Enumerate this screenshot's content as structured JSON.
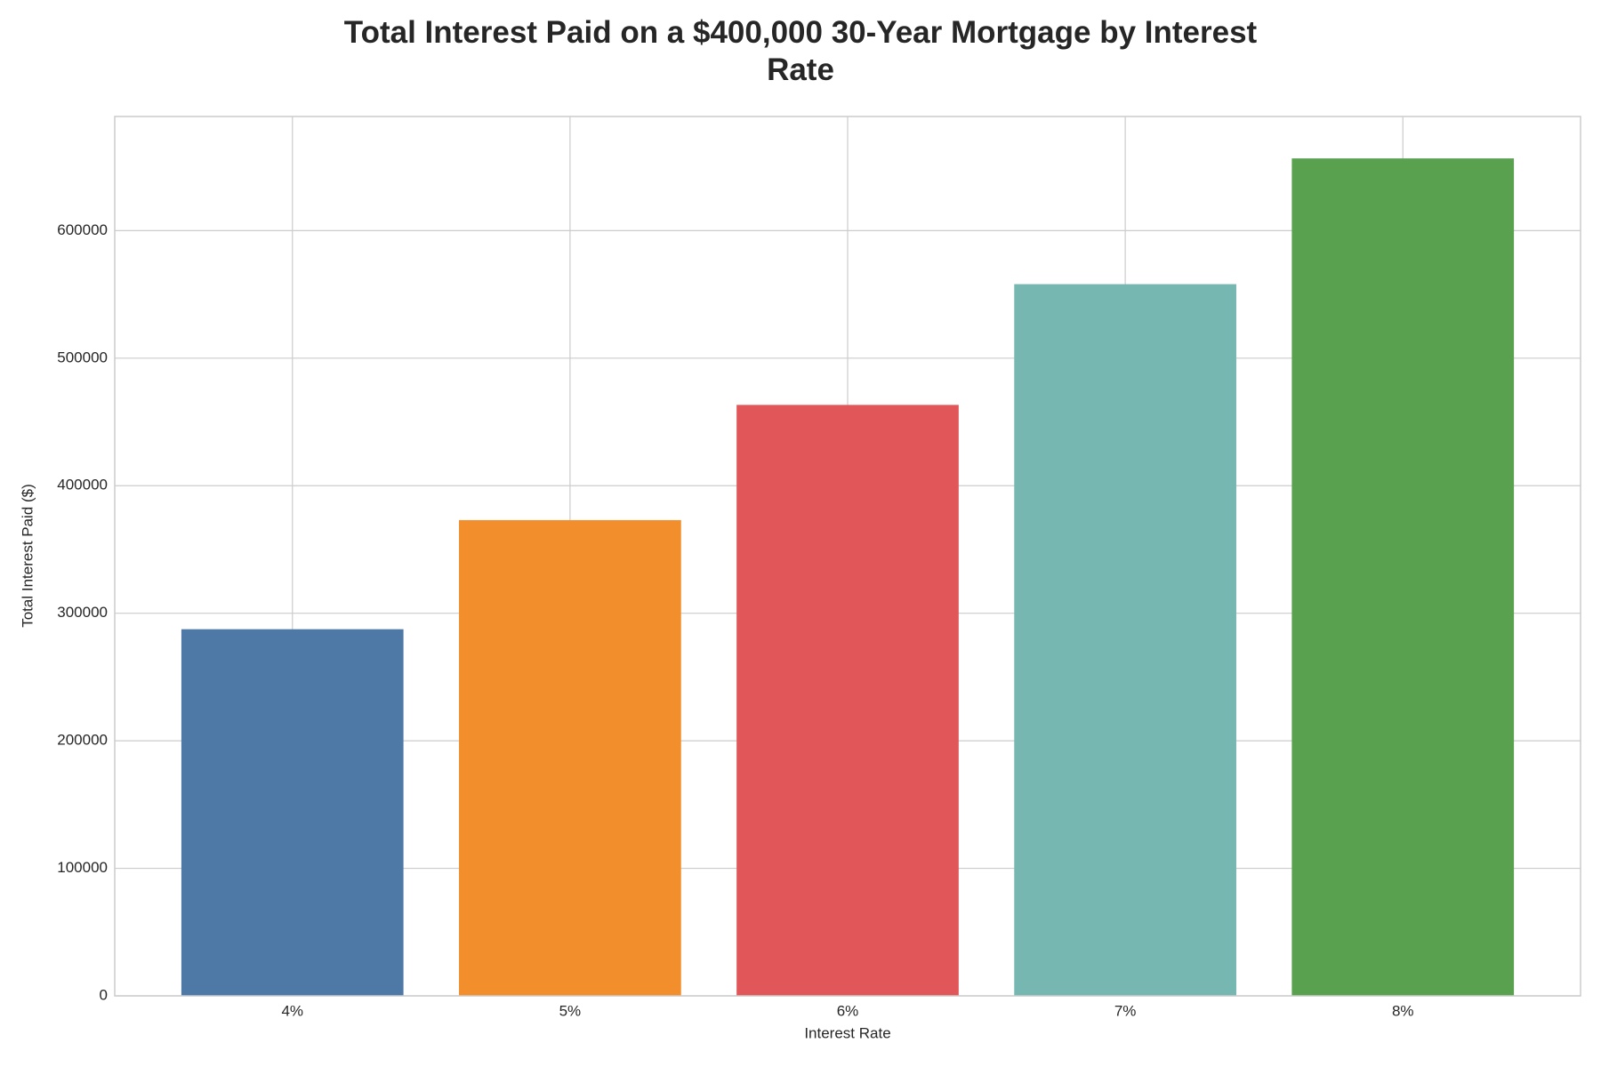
{
  "chart_data": {
    "type": "bar",
    "title": "Total Interest Paid on a $400,000 30-Year Mortgage by Interest Rate",
    "x_label": "Interest Rate",
    "y_label": "Total Interest Paid ($)",
    "categories": [
      "4%",
      "5%",
      "6%",
      "7%",
      "8%"
    ],
    "values": [
      287478,
      373023,
      463353,
      558036,
      656626
    ],
    "colors": [
      "#4e79a7",
      "#f28e2b",
      "#e15759",
      "#76b7b2",
      "#59a14f"
    ],
    "ylim": [
      0,
      689500
    ],
    "yticks": [
      0,
      100000,
      200000,
      300000,
      400000,
      500000,
      600000
    ],
    "grid": true
  }
}
